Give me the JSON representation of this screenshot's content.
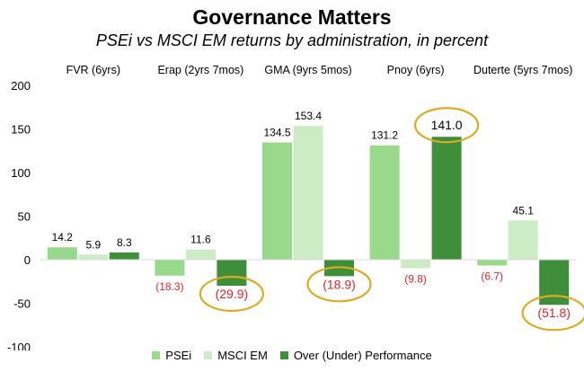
{
  "chart_data": {
    "type": "bar",
    "title": "Governance Matters",
    "subtitle": "PSEi vs MSCI EM returns by administration, in percent",
    "categories": [
      "FVR (6yrs)",
      "Erap (2yrs 7mos)",
      "GMA (9yrs 5mos)",
      "Pnoy (6yrs)",
      "Duterte (5yrs 7mos)"
    ],
    "series": [
      {
        "name": "PSEi",
        "color": "#99d98c",
        "values": [
          14.2,
          -18.3,
          134.5,
          131.2,
          -6.7
        ],
        "labels": [
          "14.2",
          "(18.3)",
          "134.5",
          "131.2",
          "(6.7)"
        ]
      },
      {
        "name": "MSCI EM",
        "color": "#ccecc5",
        "values": [
          5.9,
          11.6,
          153.4,
          -9.8,
          45.1
        ],
        "labels": [
          "5.9",
          "11.6",
          "153.4",
          "(9.8)",
          "45.1"
        ]
      },
      {
        "name": "Over (Under) Performance",
        "color": "#3f8f3a",
        "values": [
          8.3,
          -29.9,
          -18.9,
          141.0,
          -51.8
        ],
        "labels": [
          "8.3",
          "(29.9)",
          "(18.9)",
          "141.0",
          "(51.8)"
        ]
      }
    ],
    "ylim": [
      -100,
      200
    ],
    "yticks": [
      -100,
      -50,
      0,
      50,
      100,
      150,
      200
    ],
    "negative_label_color": "#e8202a",
    "highlight_color": "#ddaa22",
    "highlighted": [
      {
        "category": 1,
        "series": 2
      },
      {
        "category": 2,
        "series": 2
      },
      {
        "category": 3,
        "series": 2
      },
      {
        "category": 4,
        "series": 2
      }
    ],
    "legend_position": "bottom",
    "grid": false
  }
}
